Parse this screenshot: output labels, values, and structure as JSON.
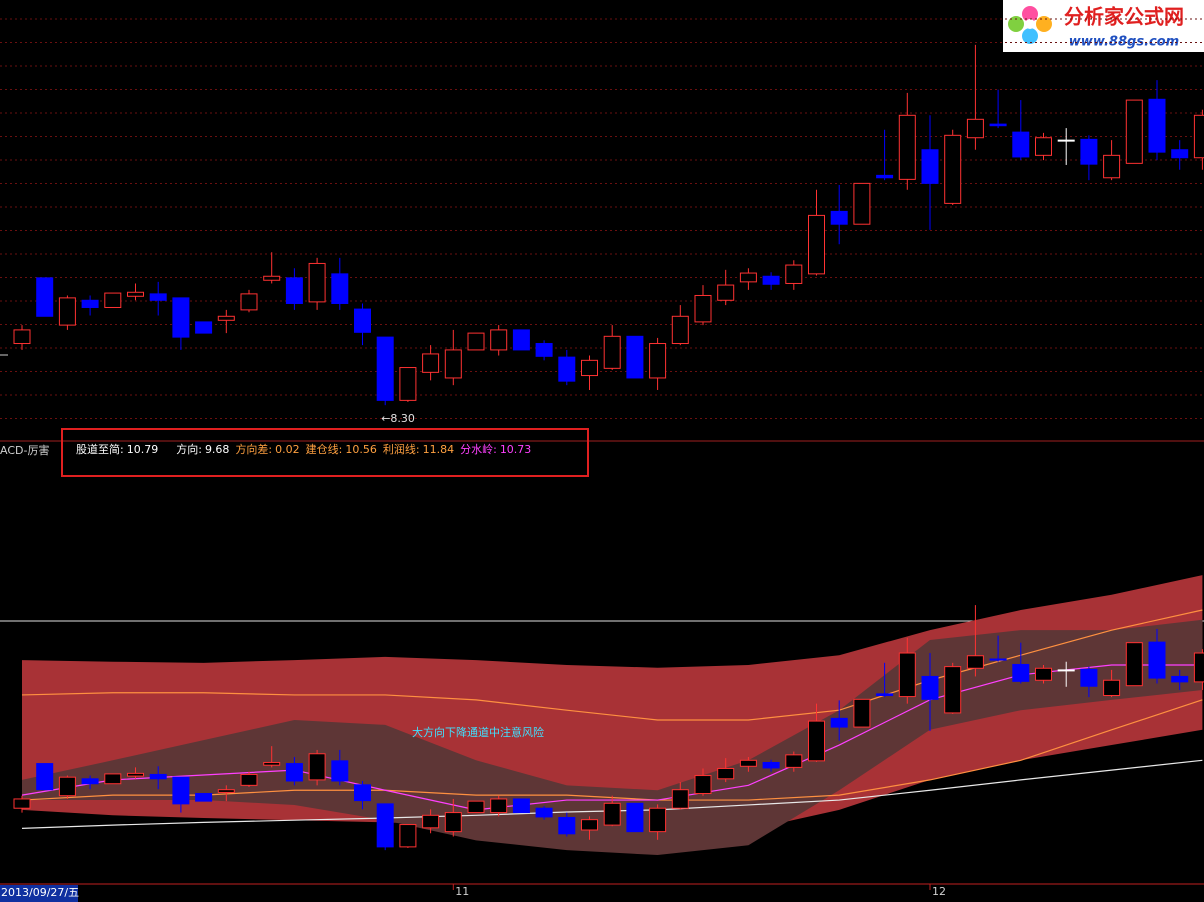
{
  "header": {
    "indicator_name": "ACD-厉害",
    "logo_title": "分析家公式网",
    "logo_url": "www.88gs.com"
  },
  "legend": [
    {
      "label": "股道至简:",
      "value": 10.79,
      "color": "#ffffff"
    },
    {
      "label": "方向:",
      "value": 9.68,
      "color": "#ffffff"
    },
    {
      "label": "方向差:",
      "value": 0.02,
      "color": "#ffa040"
    },
    {
      "label": "建仓线:",
      "value": 10.56,
      "color": "#ffa040"
    },
    {
      "label": "利润线:",
      "value": 11.84,
      "color": "#ffa040"
    },
    {
      "label": "分水岭:",
      "value": 10.73,
      "color": "#ff40ff"
    }
  ],
  "chart_data": [
    {
      "type": "candlestick",
      "ylim": [
        7.99,
        13.36
      ],
      "up_color": "#ff3232",
      "down_color": "#0000ff",
      "candles": {
        "open": [
          9.07,
          9.89,
          9.3,
          9.61,
          9.52,
          9.66,
          9.69,
          9.64,
          9.34,
          9.36,
          9.49,
          9.86,
          9.89,
          9.59,
          9.94,
          9.5,
          9.15,
          8.36,
          8.71,
          8.64,
          8.99,
          8.99,
          9.24,
          9.07,
          8.9,
          8.67,
          8.76,
          9.16,
          8.64,
          9.07,
          9.34,
          9.61,
          9.84,
          9.91,
          9.82,
          9.94,
          10.72,
          10.56,
          11.17,
          11.12,
          11.49,
          10.82,
          11.64,
          11.81,
          11.71,
          11.42,
          11.61,
          11.62,
          11.14,
          11.32,
          12.12,
          11.49,
          11.39
        ],
        "high": [
          9.3,
          9.89,
          9.67,
          9.67,
          9.7,
          9.82,
          9.84,
          9.64,
          9.34,
          9.49,
          9.74,
          10.21,
          10.01,
          10.14,
          10.14,
          9.57,
          9.15,
          8.77,
          9.05,
          9.24,
          9.2,
          9.3,
          9.24,
          9.11,
          8.99,
          8.92,
          9.3,
          9.16,
          9.14,
          9.55,
          9.8,
          9.99,
          10.01,
          9.96,
          10.11,
          10.99,
          11.05,
          11.07,
          11.74,
          12.2,
          11.92,
          11.74,
          12.8,
          12.24,
          12.11,
          11.7,
          11.76,
          11.67,
          11.61,
          12.11,
          12.36,
          11.61,
          11.99
        ],
        "low": [
          8.99,
          9.41,
          9.24,
          9.42,
          9.52,
          9.61,
          9.42,
          8.99,
          9.2,
          9.2,
          9.46,
          9.82,
          9.49,
          9.49,
          9.49,
          9.05,
          8.3,
          8.34,
          8.61,
          8.55,
          8.99,
          8.92,
          8.99,
          8.86,
          8.55,
          8.49,
          8.74,
          8.64,
          8.49,
          9.05,
          9.3,
          9.55,
          9.74,
          9.74,
          9.74,
          9.92,
          10.31,
          10.56,
          11.11,
          10.99,
          10.49,
          10.8,
          11.49,
          11.76,
          11.36,
          11.36,
          11.3,
          11.11,
          11.11,
          11.32,
          11.36,
          11.24,
          11.24
        ],
        "close": [
          9.24,
          9.41,
          9.64,
          9.52,
          9.7,
          9.71,
          9.61,
          9.15,
          9.2,
          9.41,
          9.69,
          9.91,
          9.57,
          10.07,
          9.57,
          9.21,
          8.36,
          8.77,
          8.94,
          8.99,
          9.2,
          9.24,
          8.99,
          8.91,
          8.6,
          8.86,
          9.16,
          8.64,
          9.07,
          9.41,
          9.67,
          9.8,
          9.95,
          9.81,
          10.05,
          10.67,
          10.56,
          11.07,
          11.14,
          11.92,
          11.07,
          11.67,
          11.87,
          11.79,
          11.4,
          11.64,
          11.61,
          11.31,
          11.42,
          12.11,
          11.46,
          11.39,
          11.92
        ]
      },
      "low_marker": {
        "value": 8.3,
        "label": "←8.30"
      }
    },
    {
      "type": "bands",
      "ylim": [
        7.66,
        14.73
      ],
      "annotation": "大方向下降通道中注意风险",
      "date_label": "2013/09/27/五",
      "xticks": [
        {
          "value": 19,
          "label": "11"
        },
        {
          "value": 40,
          "label": "12"
        }
      ],
      "x": [
        0,
        4,
        8,
        12,
        16,
        20,
        24,
        28,
        32,
        36,
        40,
        44,
        48,
        52
      ],
      "bands": [
        {
          "color": "#a83236",
          "upper": [
            11.79,
            11.76,
            11.74,
            11.79,
            11.85,
            11.79,
            11.7,
            11.65,
            11.7,
            11.88,
            12.34,
            12.71,
            12.99,
            13.35
          ],
          "lower": [
            9.04,
            8.94,
            8.89,
            8.85,
            8.81,
            8.76,
            8.67,
            8.61,
            8.67,
            9.04,
            9.59,
            9.95,
            10.23,
            10.51
          ]
        },
        {
          "color": "#5e3636",
          "upper": [
            9.59,
            9.95,
            10.32,
            10.69,
            10.6,
            9.95,
            9.49,
            9.4,
            9.95,
            10.87,
            12.16,
            12.34,
            12.34,
            12.53
          ],
          "lower": [
            9.22,
            9.22,
            9.22,
            9.13,
            8.85,
            8.48,
            8.3,
            8.21,
            8.39,
            9.4,
            10.51,
            10.87,
            11.06,
            11.24
          ]
        }
      ],
      "lines": [
        {
          "color": "#ff9040",
          "values": [
            11.15,
            11.19,
            11.19,
            11.15,
            11.15,
            11.06,
            10.87,
            10.69,
            10.69,
            10.87,
            11.42,
            11.88,
            12.34,
            12.71
          ]
        },
        {
          "color": "#ff9040",
          "values": [
            9.22,
            9.31,
            9.31,
            9.4,
            9.4,
            9.31,
            9.31,
            9.22,
            9.22,
            9.31,
            9.59,
            9.95,
            10.51,
            11.06
          ]
        },
        {
          "color": "#e8e8e8",
          "values": [
            8.7,
            8.76,
            8.81,
            8.85,
            8.89,
            8.94,
            9.0,
            9.04,
            9.13,
            9.22,
            9.4,
            9.59,
            9.77,
            9.95
          ]
        },
        {
          "color": "#ff40ff",
          "values": [
            9.31,
            9.59,
            9.68,
            9.77,
            9.4,
            9.04,
            9.22,
            9.22,
            9.49,
            10.23,
            11.06,
            11.52,
            11.7,
            11.7
          ]
        }
      ]
    }
  ]
}
